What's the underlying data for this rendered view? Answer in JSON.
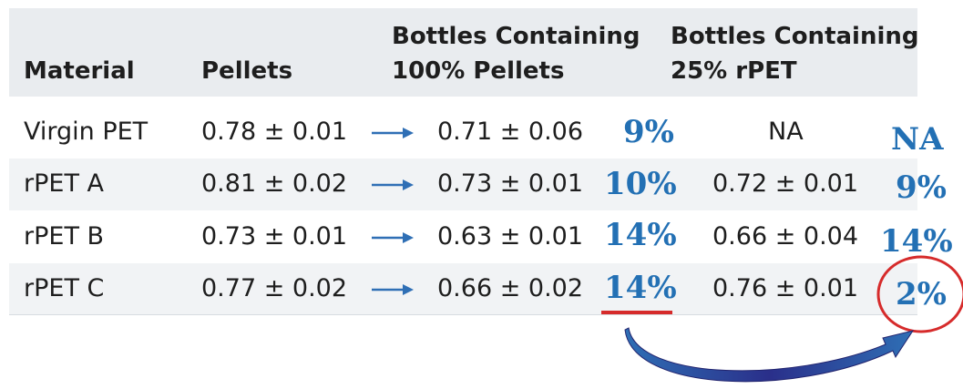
{
  "table": {
    "headers": {
      "material": "Material",
      "pellets": "Pellets",
      "bottles_100_line1": "Bottles Containing",
      "bottles_100_line2": "100% Pellets",
      "bottles_25_line1": "Bottles Containing",
      "bottles_25_line2": "25% rPET"
    },
    "rows": [
      {
        "material": "Virgin PET",
        "pellets": "0.78 ± 0.01",
        "bottles_100": "0.71 ± 0.06",
        "drop_100": "9%",
        "bottles_25": "NA",
        "drop_25": "NA"
      },
      {
        "material": "rPET A",
        "pellets": "0.81 ± 0.02",
        "bottles_100": "0.73 ± 0.01",
        "drop_100": "10%",
        "bottles_25": "0.72 ± 0.01",
        "drop_25": "9%"
      },
      {
        "material": "rPET B",
        "pellets": "0.73 ± 0.01",
        "bottles_100": "0.63 ± 0.01",
        "drop_100": "14%",
        "bottles_25": "0.66 ± 0.04",
        "drop_25": "14%"
      },
      {
        "material": "rPET C",
        "pellets": "0.77 ± 0.02",
        "bottles_100": "0.66 ± 0.02",
        "drop_100": "14%",
        "bottles_25": "0.76 ± 0.01",
        "drop_25": "2%"
      }
    ]
  },
  "colors": {
    "header_bg": "#e9ecef",
    "stripe_bg": "#f1f3f5",
    "annotation_blue": "#2370b4",
    "highlight_red": "#d62b2b",
    "arrow_blue": "#2f6fb5",
    "arrow_dark": "#2a2f8a"
  }
}
